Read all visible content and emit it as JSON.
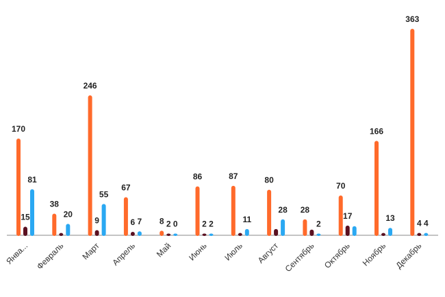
{
  "chart_data": {
    "type": "bar",
    "categories": [
      "Янва...",
      "Февраль",
      "Март",
      "Апрель",
      "Май",
      "Июнь",
      "Июль",
      "Август",
      "Сентябрь",
      "Октябрь",
      "Ноябрь",
      "Декабрь"
    ],
    "series": [
      {
        "color": "#ff6a2b",
        "values": [
          170,
          38,
          246,
          67,
          8,
          86,
          87,
          80,
          28,
          70,
          166,
          363
        ],
        "show_label": [
          true,
          true,
          true,
          true,
          true,
          true,
          true,
          true,
          true,
          true,
          true,
          true
        ]
      },
      {
        "color": "#5a1020",
        "values": [
          15,
          4,
          9,
          6,
          2,
          2,
          4,
          11,
          10,
          17,
          4,
          4
        ],
        "show_label": [
          true,
          false,
          true,
          true,
          true,
          true,
          false,
          false,
          false,
          true,
          false,
          true
        ]
      },
      {
        "color": "#2aa8f2",
        "values": [
          81,
          20,
          55,
          7,
          0,
          2,
          11,
          28,
          2,
          16,
          13,
          4
        ],
        "show_label": [
          true,
          true,
          true,
          true,
          true,
          true,
          true,
          true,
          true,
          false,
          true,
          true
        ]
      }
    ],
    "ylim": [
      0,
      363
    ],
    "grid": false,
    "legend": "none"
  }
}
